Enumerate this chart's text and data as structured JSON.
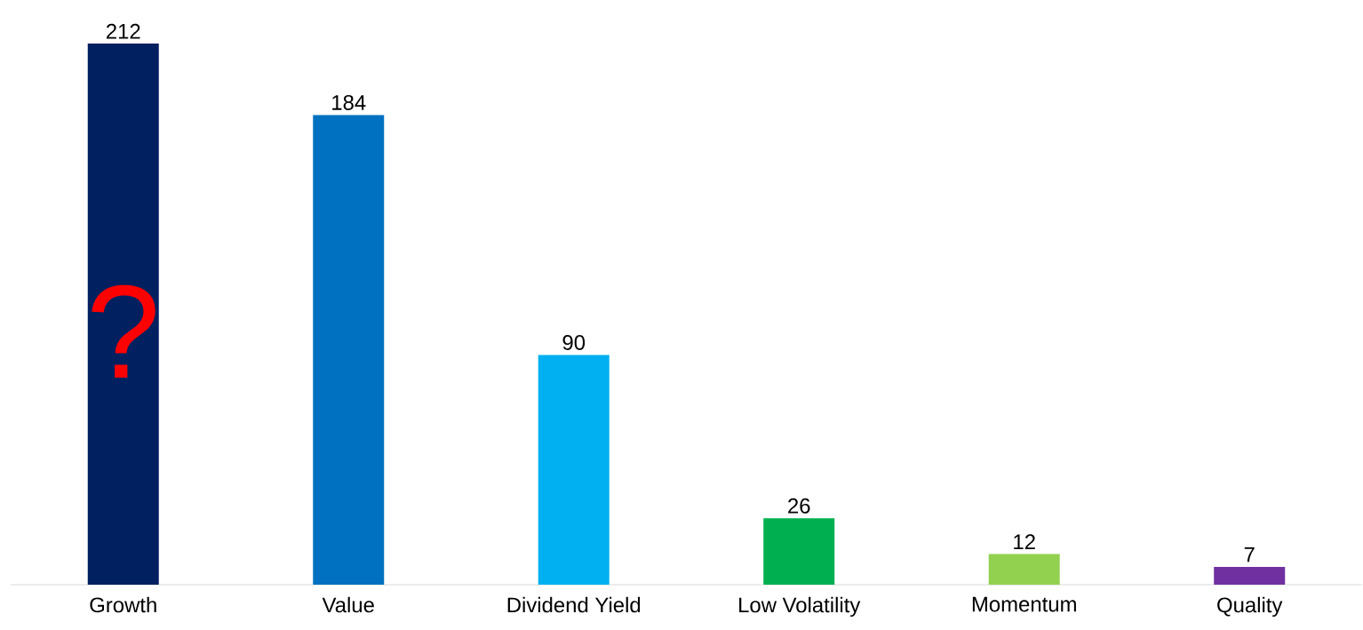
{
  "chart_data": {
    "type": "bar",
    "categories": [
      "Growth",
      "Value",
      "Dividend Yield",
      "Low Volatility",
      "Momentum",
      "Quality"
    ],
    "values": [
      212,
      184,
      90,
      26,
      12,
      7
    ],
    "colors": [
      "#002060",
      "#0070c0",
      "#00b0f0",
      "#00b050",
      "#92d050",
      "#7030a0"
    ],
    "data_labels": true,
    "grid": false,
    "annotations": [
      "?"
    ]
  }
}
